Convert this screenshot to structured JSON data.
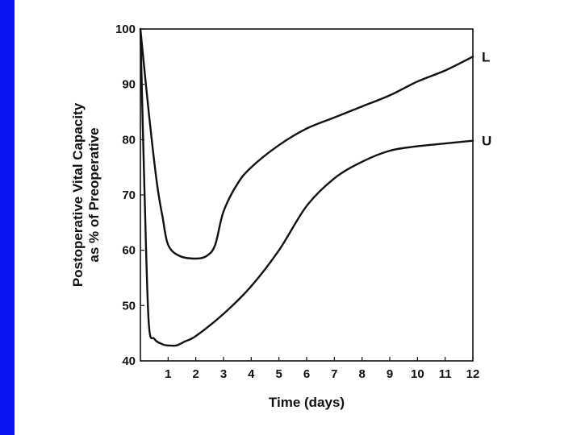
{
  "slide": {
    "accent_color": "#0a14f0"
  },
  "chart_data": {
    "type": "line",
    "title": "",
    "xlabel": "Time (days)",
    "ylabel": [
      "Postoperative Vital Capacity",
      "as % of Preoperative"
    ],
    "xlim": [
      0,
      12
    ],
    "ylim": [
      40,
      100
    ],
    "x_ticks": [
      1,
      2,
      3,
      4,
      5,
      6,
      7,
      8,
      9,
      10,
      11,
      12
    ],
    "y_ticks": [
      40,
      50,
      60,
      70,
      80,
      90,
      100
    ],
    "grid": false,
    "series": [
      {
        "name": "L",
        "x": [
          0,
          0.3,
          0.6,
          0.8,
          1.0,
          1.4,
          2.0,
          2.4,
          2.7,
          3.0,
          3.5,
          4.0,
          5.0,
          6.0,
          7.0,
          8.0,
          9.0,
          10.0,
          11.0,
          12.0
        ],
        "y": [
          100,
          85,
          72,
          66,
          61,
          59,
          58.5,
          59,
          61,
          67,
          72,
          75,
          79,
          82,
          84,
          86,
          88,
          90.5,
          92.5,
          95
        ]
      },
      {
        "name": "U",
        "x": [
          0,
          0.15,
          0.3,
          0.5,
          0.8,
          1.0,
          1.3,
          1.6,
          2.0,
          3.0,
          4.0,
          5.0,
          6.0,
          7.0,
          8.0,
          9.0,
          10.0,
          11.0,
          12.0
        ],
        "y": [
          100,
          70,
          47,
          44,
          43,
          42.8,
          42.8,
          43.5,
          44.5,
          48.5,
          53.5,
          60,
          68,
          73,
          76,
          78,
          78.8,
          79.3,
          79.8
        ]
      }
    ]
  }
}
